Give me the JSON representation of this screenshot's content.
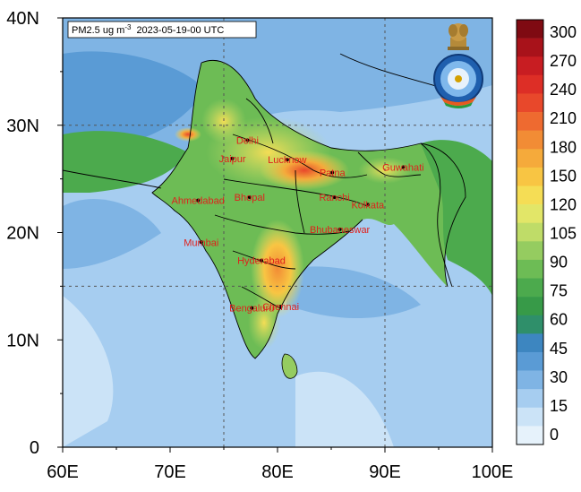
{
  "title": {
    "variable": "PM2.5 ug m",
    "unit_exponent": "-3",
    "timestamp": "2023-05-19-00 UTC"
  },
  "map": {
    "lon_range": [
      60,
      100
    ],
    "lat_range": [
      0,
      40
    ],
    "x_ticks": [
      "60E",
      "70E",
      "80E",
      "90E",
      "100E"
    ],
    "y_ticks": [
      "40N",
      "30N",
      "20N",
      "10N",
      "0"
    ],
    "gridlines": {
      "lon": [
        75,
        90
      ],
      "lat": [
        15,
        30
      ]
    }
  },
  "colorbar": {
    "labels": [
      "300",
      "270",
      "240",
      "210",
      "180",
      "150",
      "120",
      "105",
      "90",
      "75",
      "60",
      "45",
      "30",
      "15",
      "0"
    ],
    "colors_top_to_bottom": [
      "#7f0a12",
      "#a8121a",
      "#c81d22",
      "#dd2e26",
      "#e8482b",
      "#ee6a30",
      "#f28c35",
      "#f5aa3b",
      "#f8c543",
      "#f5dd55",
      "#e2e668",
      "#bfdc68",
      "#95cc60",
      "#6dbc55",
      "#4caa4d",
      "#379a48",
      "#2f8f6a",
      "#3d86c0",
      "#5a9bd5",
      "#7fb4e4",
      "#a6cdf0",
      "#cbe3f7",
      "#e6f2fb"
    ]
  },
  "cities": [
    {
      "name": "Delhi",
      "lon": 77.2,
      "lat": 28.6
    },
    {
      "name": "Jaipur",
      "lon": 75.8,
      "lat": 26.9
    },
    {
      "name": "Lucknow",
      "lon": 80.9,
      "lat": 26.8
    },
    {
      "name": "Patna",
      "lon": 85.1,
      "lat": 25.6
    },
    {
      "name": "Guwahati",
      "lon": 91.7,
      "lat": 26.1
    },
    {
      "name": "Ahmedabad",
      "lon": 72.6,
      "lat": 23.0
    },
    {
      "name": "Bhopal",
      "lon": 77.4,
      "lat": 23.3
    },
    {
      "name": "Ranchi",
      "lon": 85.3,
      "lat": 23.3
    },
    {
      "name": "Kolkata",
      "lon": 88.4,
      "lat": 22.6
    },
    {
      "name": "Bhubaneswar",
      "lon": 85.8,
      "lat": 20.3
    },
    {
      "name": "Mumbai",
      "lon": 72.9,
      "lat": 19.1
    },
    {
      "name": "Hyderabad",
      "lon": 78.5,
      "lat": 17.4
    },
    {
      "name": "Chennai",
      "lon": 80.3,
      "lat": 13.1
    },
    {
      "name": "Bengaluru",
      "lon": 77.6,
      "lat": 12.97
    }
  ],
  "logo_icons": [
    "emblem-icon",
    "imd-logo-icon"
  ]
}
